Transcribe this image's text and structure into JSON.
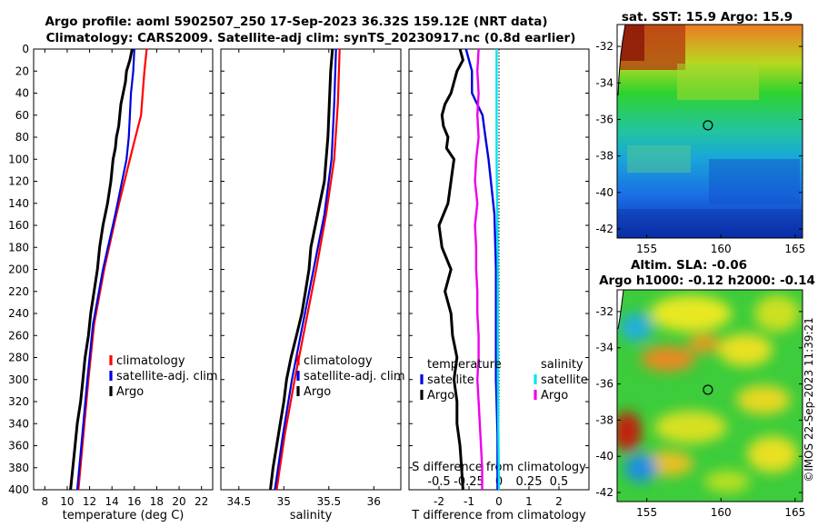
{
  "header": {
    "line1": "Argo profile: aoml 5902507_250 17-Sep-2023 36.32S 159.12E (NRT data)",
    "line2": "Climatology: CARS2009. Satellite-adj clim: synTS_20230917.nc (0.8d earlier)"
  },
  "colors": {
    "climatology": "#ff0000",
    "satellite": "#0000dd",
    "argo": "#000000",
    "argo_salinity_diff": "#ee00ee",
    "satellite_salinity_diff": "#00e5ee",
    "zero_line": "#000000"
  },
  "chart_data": [
    {
      "type": "line",
      "id": "temperature",
      "xlabel": "temperature (deg C)",
      "ylabel": "",
      "xlim": [
        7,
        23
      ],
      "ylim": [
        400,
        0
      ],
      "xticks": [
        8,
        10,
        12,
        14,
        16,
        18,
        20,
        22
      ],
      "yticks": [
        0,
        20,
        40,
        60,
        80,
        100,
        120,
        140,
        160,
        180,
        200,
        220,
        240,
        260,
        280,
        300,
        320,
        340,
        360,
        380,
        400
      ],
      "legend": [
        "climatology",
        "satellite-adj. clim",
        "Argo"
      ],
      "series": [
        {
          "name": "climatology",
          "depth": [
            0,
            20,
            40,
            60,
            80,
            100,
            150,
            200,
            250,
            300,
            350,
            400
          ],
          "values": [
            17.1,
            16.9,
            16.75,
            16.6,
            16.1,
            15.6,
            14.4,
            13.3,
            12.4,
            11.9,
            11.45,
            11.0
          ]
        },
        {
          "name": "satellite-adj. clim",
          "depth": [
            0,
            20,
            40,
            60,
            80,
            100,
            150,
            200,
            250,
            300,
            350,
            400
          ],
          "values": [
            16.0,
            15.9,
            15.7,
            15.6,
            15.5,
            15.3,
            14.3,
            13.2,
            12.3,
            11.8,
            11.35,
            10.9
          ]
        },
        {
          "name": "Argo",
          "depth": [
            0,
            10,
            20,
            30,
            40,
            50,
            60,
            70,
            80,
            90,
            100,
            120,
            140,
            160,
            180,
            200,
            220,
            240,
            260,
            280,
            300,
            320,
            340,
            360,
            380,
            400
          ],
          "values": [
            15.8,
            15.6,
            15.3,
            15.2,
            15.0,
            14.8,
            14.7,
            14.6,
            14.4,
            14.3,
            14.1,
            13.9,
            13.6,
            13.2,
            12.9,
            12.7,
            12.4,
            12.1,
            11.9,
            11.6,
            11.4,
            11.2,
            10.9,
            10.7,
            10.5,
            10.3
          ]
        }
      ]
    },
    {
      "type": "line",
      "id": "salinity",
      "xlabel": "salinity",
      "xlim": [
        34.3,
        36.3
      ],
      "ylim": [
        400,
        0
      ],
      "xticks": [
        34.5,
        35,
        35.5,
        36
      ],
      "legend": [
        "climatology",
        "satellite-adj. clim",
        "Argo"
      ],
      "series": [
        {
          "name": "climatology",
          "depth": [
            0,
            50,
            100,
            150,
            200,
            250,
            300,
            350,
            400
          ],
          "values": [
            35.62,
            35.6,
            35.56,
            35.47,
            35.36,
            35.24,
            35.12,
            35.01,
            34.92
          ]
        },
        {
          "name": "satellite-adj. clim",
          "depth": [
            0,
            50,
            100,
            150,
            200,
            250,
            300,
            350,
            400
          ],
          "values": [
            35.58,
            35.56,
            35.53,
            35.45,
            35.33,
            35.21,
            35.09,
            34.99,
            34.9
          ]
        },
        {
          "name": "Argo",
          "depth": [
            0,
            20,
            40,
            60,
            80,
            100,
            120,
            140,
            160,
            180,
            200,
            220,
            240,
            260,
            280,
            300,
            320,
            340,
            360,
            380,
            400
          ],
          "values": [
            35.54,
            35.52,
            35.51,
            35.5,
            35.49,
            35.47,
            35.45,
            35.4,
            35.35,
            35.3,
            35.28,
            35.24,
            35.2,
            35.14,
            35.08,
            35.03,
            35.0,
            34.96,
            34.92,
            34.88,
            34.85
          ]
        }
      ]
    },
    {
      "type": "line",
      "id": "difference",
      "xlabel": "T difference from climatology",
      "xlabel_top": "S difference from climatology",
      "xlim": [
        -3,
        3
      ],
      "xticks": [
        -2,
        -1,
        0,
        1,
        2
      ],
      "xlim_salinity": [
        -0.75,
        0.75
      ],
      "xticks_salinity_labels": [
        "-0.5",
        "-0.25",
        "0",
        "0.25",
        "0.5"
      ],
      "ylim": [
        400,
        0
      ],
      "legend_temperature_title": "temperature",
      "legend_salinity_title": "salinity",
      "legend_temperature": [
        "satellite",
        "Argo"
      ],
      "legend_salinity": [
        "satellite",
        "Argo"
      ],
      "series": [
        {
          "name": "satellite T",
          "depth": [
            0,
            20,
            40,
            60,
            80,
            100,
            150,
            200,
            250,
            300,
            350,
            400
          ],
          "values": [
            -1.1,
            -0.9,
            -0.9,
            -0.55,
            -0.45,
            -0.35,
            -0.15,
            -0.1,
            -0.1,
            -0.1,
            -0.05,
            -0.05
          ]
        },
        {
          "name": "Argo T",
          "depth": [
            0,
            10,
            20,
            30,
            40,
            50,
            60,
            70,
            80,
            90,
            100,
            120,
            140,
            160,
            180,
            200,
            220,
            240,
            260,
            280,
            300,
            320,
            340,
            360,
            380,
            400
          ],
          "values": [
            -1.3,
            -1.2,
            -1.4,
            -1.5,
            -1.6,
            -1.8,
            -1.9,
            -1.85,
            -1.7,
            -1.75,
            -1.5,
            -1.6,
            -1.7,
            -2.0,
            -1.9,
            -1.6,
            -1.8,
            -1.6,
            -1.55,
            -1.4,
            -1.5,
            -1.4,
            -1.4,
            -1.3,
            -1.25,
            -1.2
          ]
        },
        {
          "name": "satellite S",
          "depth": [
            0,
            100,
            200,
            300,
            400
          ],
          "values": [
            -0.02,
            -0.02,
            -0.01,
            -0.01,
            0.0
          ]
        },
        {
          "name": "Argo S",
          "depth": [
            0,
            20,
            40,
            60,
            80,
            100,
            120,
            140,
            160,
            180,
            200,
            220,
            240,
            260,
            280,
            300,
            320,
            340,
            360,
            380,
            400
          ],
          "values": [
            -0.17,
            -0.18,
            -0.17,
            -0.18,
            -0.17,
            -0.19,
            -0.2,
            -0.18,
            -0.2,
            -0.19,
            -0.19,
            -0.18,
            -0.18,
            -0.17,
            -0.17,
            -0.18,
            -0.17,
            -0.16,
            -0.15,
            -0.14,
            -0.14
          ]
        }
      ]
    },
    {
      "type": "heatmap",
      "id": "sst_map",
      "title": "sat. SST: 15.9 Argo: 15.9",
      "xlim": [
        153,
        165.5
      ],
      "ylim": [
        -42.5,
        -30.8
      ],
      "xticks": [
        155,
        160,
        165
      ],
      "yticks": [
        -32,
        -34,
        -36,
        -38,
        -40,
        -42
      ],
      "argo_position": {
        "lon": 159.12,
        "lat": -36.32
      }
    },
    {
      "type": "heatmap",
      "id": "sla_map",
      "title_line1": "Altim. SLA: -0.06",
      "title_line2": "Argo h1000: -0.12 h2000: -0.14",
      "xlim": [
        153,
        165.5
      ],
      "ylim": [
        -42.5,
        -30.8
      ],
      "xticks": [
        155,
        160,
        165
      ],
      "yticks": [
        -32,
        -34,
        -36,
        -38,
        -40,
        -42
      ],
      "argo_position": {
        "lon": 159.12,
        "lat": -36.32
      }
    }
  ],
  "footer": {
    "credit": "©IMOS 22-Sep-2023 11:39:21"
  }
}
